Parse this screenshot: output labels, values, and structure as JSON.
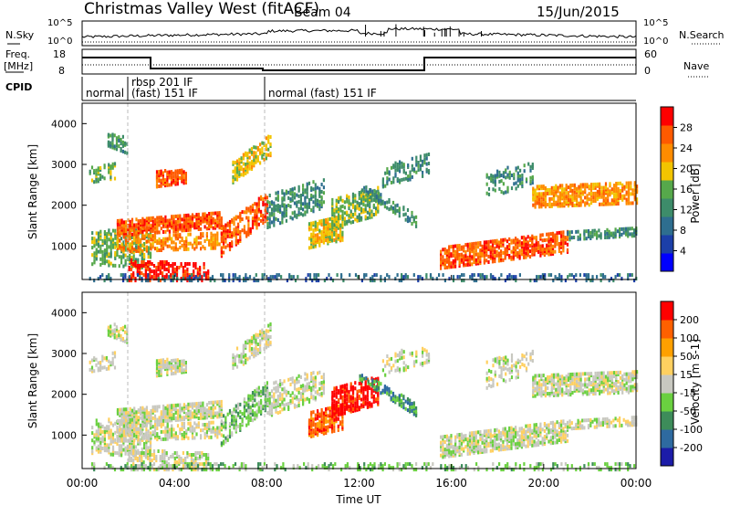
{
  "header": {
    "title": "Christmas Valley West (fitACF)",
    "beam": "Beam 04",
    "date": "15/Jun/2015"
  },
  "top_panels": {
    "nsky_label": "N.Sky",
    "nsky_ticks": [
      "10^5",
      "10^0"
    ],
    "nsearch_label": "N.Search",
    "freq_label_1": "Freq.",
    "freq_label_2": "[MHz]",
    "freq_ticks": [
      "18",
      "8"
    ],
    "nave_label": "Nave",
    "nave_ticks": [
      "60",
      "0"
    ],
    "cpid_label": "CPID",
    "cpid_modes": [
      "normal",
      "rbsp 201 IF",
      "(fast) 151 IF",
      "normal (fast) 151 IF"
    ]
  },
  "chart_data": [
    {
      "type": "heatmap",
      "name": "power",
      "ylabel": "Slant Range [km]",
      "ylim": [
        180,
        4500
      ],
      "yticks": [
        "4000",
        "3000",
        "2000",
        "1000"
      ],
      "xlim_hours": [
        0,
        24
      ],
      "xticks": [
        "00:00",
        "04:00",
        "08:00",
        "12:00",
        "16:00",
        "20:00",
        "00:00"
      ],
      "colorbar": {
        "label": "Power [dB]",
        "ticks": [
          "28",
          "24",
          "20",
          "16",
          "12",
          "8",
          "4"
        ],
        "colors": [
          "#0000ff",
          "#1c3fa8",
          "#2e6e8f",
          "#3d8c6a",
          "#56a84b",
          "#f2c400",
          "#ff8c00",
          "#ff5a00",
          "#ff0000"
        ]
      }
    },
    {
      "type": "heatmap",
      "name": "velocity",
      "ylabel": "Slant Range [km]",
      "ylim": [
        180,
        4500
      ],
      "yticks": [
        "4000",
        "3000",
        "2000",
        "1000"
      ],
      "xlim_hours": [
        0,
        24
      ],
      "xticks": [
        "00:00",
        "04:00",
        "08:00",
        "12:00",
        "16:00",
        "20:00",
        "00:00"
      ],
      "xlabel": "Time UT",
      "colorbar": {
        "label": "Velocity [m s-1]",
        "ticks": [
          "200",
          "100",
          "50",
          "15",
          "-15",
          "-50",
          "-100",
          "-200"
        ],
        "colors": [
          "#1c1ca8",
          "#2e6aa0",
          "#3d8c5a",
          "#6ad040",
          "#c8c8c0",
          "#ffd060",
          "#ffa000",
          "#ff6000",
          "#ff0000"
        ]
      }
    }
  ]
}
